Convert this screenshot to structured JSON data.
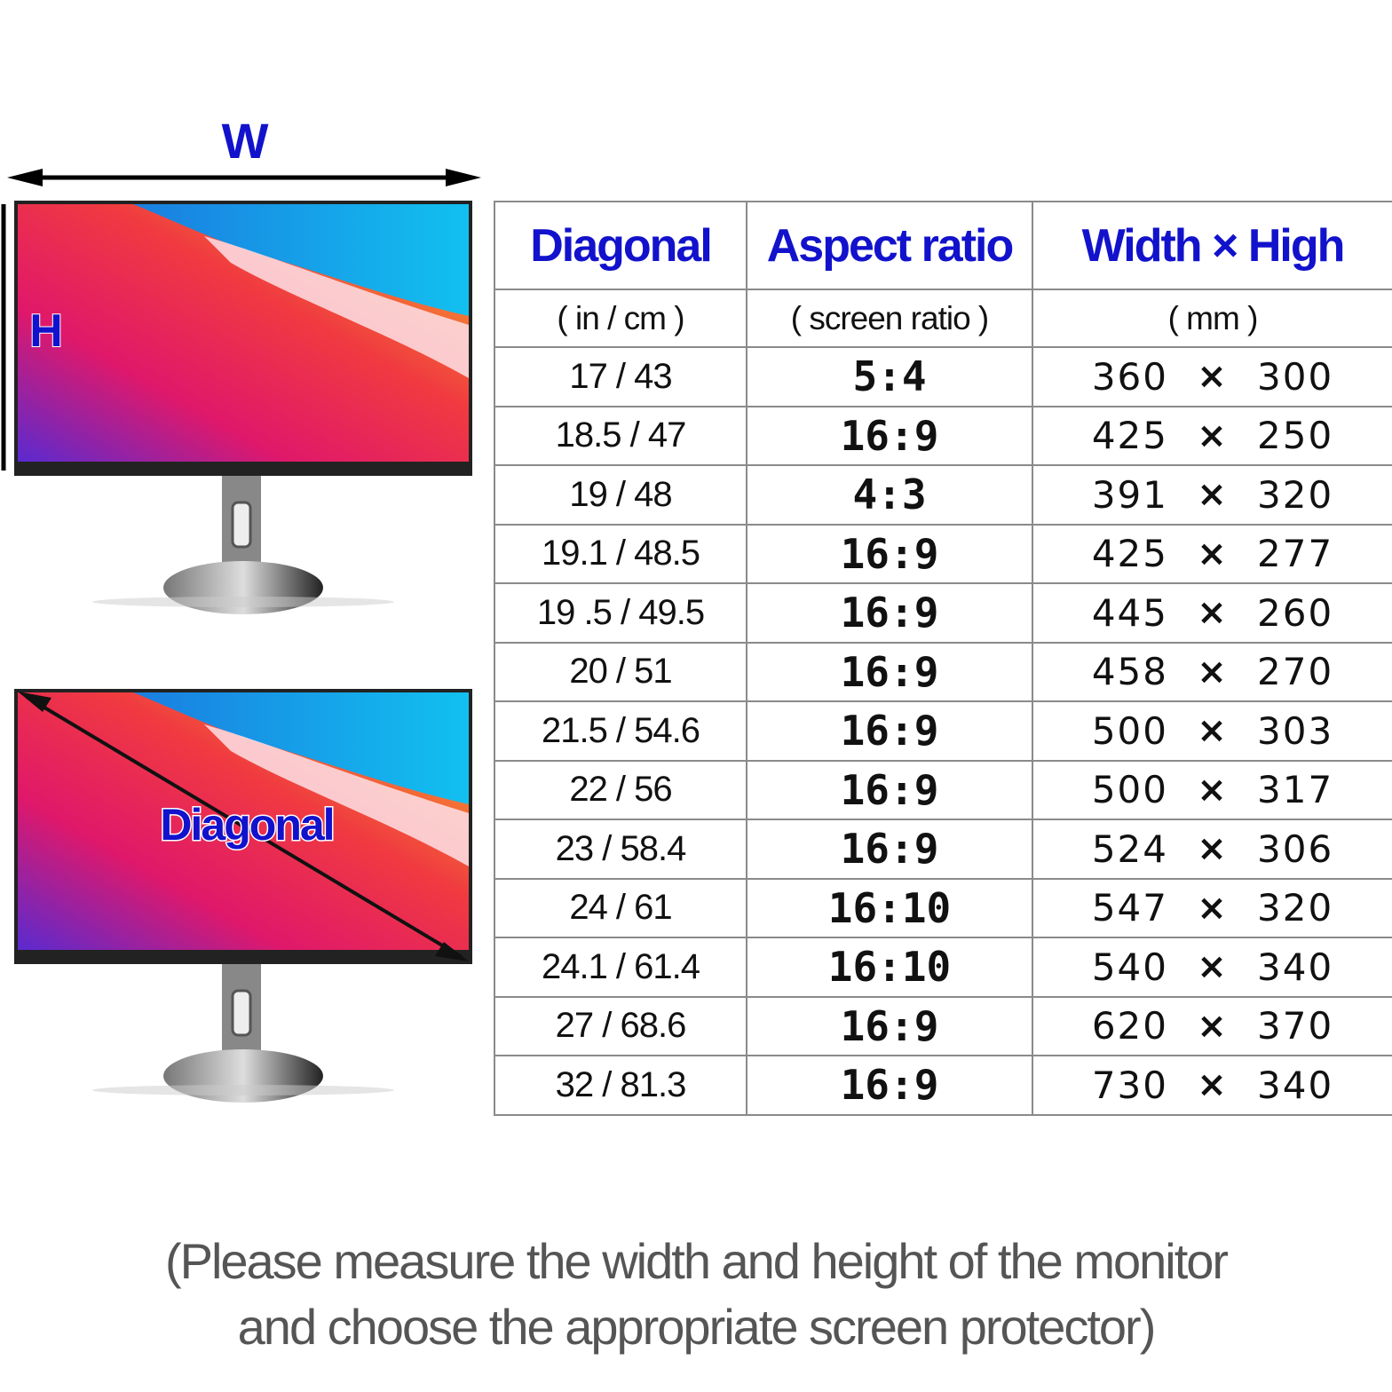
{
  "illustration": {
    "width_label": "W",
    "height_label": "H",
    "diagonal_label": "Diagonal"
  },
  "table": {
    "headers": [
      "Diagonal",
      "Aspect ratio",
      "Width × High"
    ],
    "subheaders": [
      "( in / cm )",
      "( screen ratio )",
      "( mm )"
    ],
    "times": "×",
    "rows": [
      [
        "17 / 43",
        "5:4",
        360,
        300
      ],
      [
        "18.5 / 47",
        "16:9",
        425,
        250
      ],
      [
        "19 / 48",
        "4:3",
        391,
        320
      ],
      [
        "19.1 / 48.5",
        "16:9",
        425,
        277
      ],
      [
        "19 .5 / 49.5",
        "16:9",
        445,
        260
      ],
      [
        "20 / 51",
        "16:9",
        458,
        270
      ],
      [
        "21.5 / 54.6",
        "16:9",
        500,
        303
      ],
      [
        "22 / 56",
        "16:9",
        500,
        317
      ],
      [
        "23 / 58.4",
        "16:9",
        524,
        306
      ],
      [
        "24 / 61",
        "16:10",
        547,
        320
      ],
      [
        "24.1 / 61.4",
        "16:10",
        540,
        340
      ],
      [
        "27 / 68.6",
        "16:9",
        620,
        370
      ],
      [
        "32 / 81.3",
        "16:9",
        730,
        340
      ]
    ]
  },
  "note": [
    "(Please measure the width and height of the monitor",
    "and choose the appropriate screen protector)"
  ]
}
